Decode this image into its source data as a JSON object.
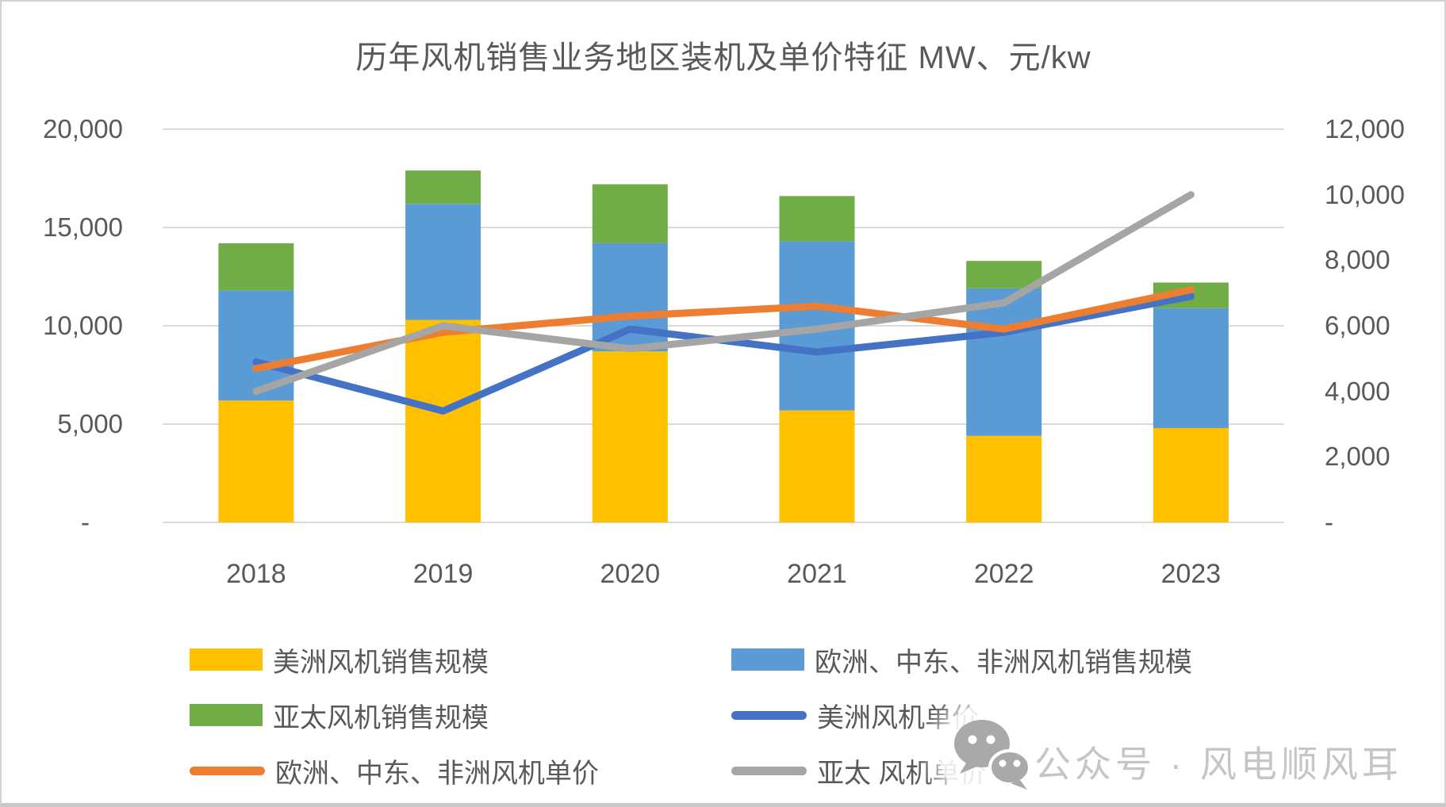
{
  "title": "历年风机销售业务地区装机及单价特征 MW、元/kw",
  "colors": {
    "americas_bar": "#FFC000",
    "emea_bar": "#5B9BD5",
    "apac_bar": "#70AD47",
    "americas_line": "#4472C4",
    "emea_line": "#ED7D31",
    "apac_line": "#A5A5A5",
    "text": "#595959",
    "gridline": "#D9D9D9",
    "watermark_text": "#C5C5C5",
    "watermark_icon": "#A9A9A9"
  },
  "chart_data": {
    "type": "bar+line",
    "title": "历年风机销售业务地区装机及单价特征 MW、元/kw",
    "categories": [
      "2018",
      "2019",
      "2020",
      "2021",
      "2022",
      "2023"
    ],
    "stacked_bars": true,
    "grid": true,
    "legend_position": "bottom",
    "units": "MW、元/kw",
    "bar_series": [
      {
        "id": "americas-sales",
        "name": "美洲风机销售规模",
        "color": "#FFC000",
        "axis": "left",
        "values": [
          6200,
          10300,
          8700,
          5700,
          4400,
          4800
        ]
      },
      {
        "id": "emea-sales",
        "name": "欧洲、中东、非洲风机销售规模",
        "color": "#5B9BD5",
        "axis": "left",
        "values": [
          5600,
          5900,
          5500,
          8600,
          7500,
          6100
        ]
      },
      {
        "id": "apac-sales",
        "name": "亚太风机销售规模",
        "color": "#70AD47",
        "axis": "left",
        "values": [
          2400,
          1700,
          3000,
          2300,
          1400,
          1300
        ]
      }
    ],
    "bar_totals": [
      14200,
      17900,
      17200,
      16600,
      13300,
      12200
    ],
    "line_series": [
      {
        "id": "americas-price",
        "name": "美洲风机单价",
        "color": "#4472C4",
        "axis": "right",
        "values": [
          4900,
          3400,
          5900,
          5200,
          5800,
          6900
        ]
      },
      {
        "id": "emea-price",
        "name": "欧洲、中东、非洲风机单价",
        "color": "#ED7D31",
        "axis": "right",
        "values": [
          4700,
          5800,
          6300,
          6600,
          5900,
          7100
        ]
      },
      {
        "id": "apac-price",
        "name": "亚太 风机单价",
        "color": "#A5A5A5",
        "axis": "right",
        "values": [
          4000,
          6000,
          5300,
          5900,
          6700,
          10000
        ]
      }
    ],
    "left_axis": {
      "min": 0,
      "max": 20000,
      "ticks": [
        {
          "label": "20,000",
          "value": 20000
        },
        {
          "label": "15,000",
          "value": 15000
        },
        {
          "label": "10,000",
          "value": 10000
        },
        {
          "label": "5,000",
          "value": 5000
        },
        {
          "label": "-",
          "value": 0
        }
      ]
    },
    "right_axis": {
      "min": 0,
      "max": 12000,
      "ticks": [
        {
          "label": "12,000",
          "value": 12000
        },
        {
          "label": "10,000",
          "value": 10000
        },
        {
          "label": "8,000",
          "value": 8000
        },
        {
          "label": "6,000",
          "value": 6000
        },
        {
          "label": "4,000",
          "value": 4000
        },
        {
          "label": "2,000",
          "value": 2000
        },
        {
          "label": "-",
          "value": 0
        }
      ]
    }
  },
  "legend": {
    "items": [
      {
        "label": "美洲风机销售规模",
        "swatch": "bar",
        "color": "#FFC000"
      },
      {
        "label": "欧洲、中东、非洲风机销售规模",
        "swatch": "bar",
        "color": "#5B9BD5"
      },
      {
        "label": "亚太风机销售规模",
        "swatch": "bar",
        "color": "#70AD47"
      },
      {
        "label": "美洲风机单价",
        "swatch": "line",
        "color": "#4472C4"
      },
      {
        "label": "欧洲、中东、非洲风机单价",
        "swatch": "line",
        "color": "#ED7D31"
      },
      {
        "label": "亚太 风机单价",
        "swatch": "line",
        "color": "#A5A5A5"
      }
    ]
  },
  "watermark": {
    "text": "公众号 · 风电顺风耳",
    "icon": "wechat-icon"
  }
}
